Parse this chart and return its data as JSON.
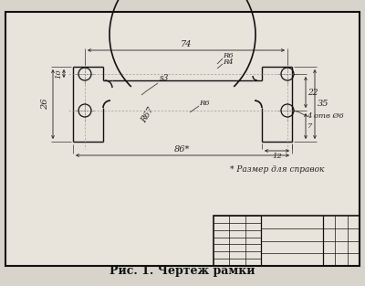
{
  "title": "Рис. 1. Чертеж рамки",
  "bg_color": "#d8d4cc",
  "border_color": "#111111",
  "drawing_bg": "#e8e4dc",
  "line_color": "#111111",
  "dim_color": "#222222",
  "caption_fontsize": 9,
  "note_text": "* Размер для справок",
  "dim_74": "74",
  "dim_86": "86*",
  "dim_26": "26",
  "dim_10": "10",
  "dim_35": "35",
  "dim_22": "22",
  "dim_7": "7",
  "dim_12": "12",
  "dim_R6_top": "R6",
  "dim_R4": "R4",
  "dim_R67": "R67",
  "dim_R6_bot": "R6",
  "dim_s3": "s3",
  "dim_holes": "4 отв Ø6"
}
